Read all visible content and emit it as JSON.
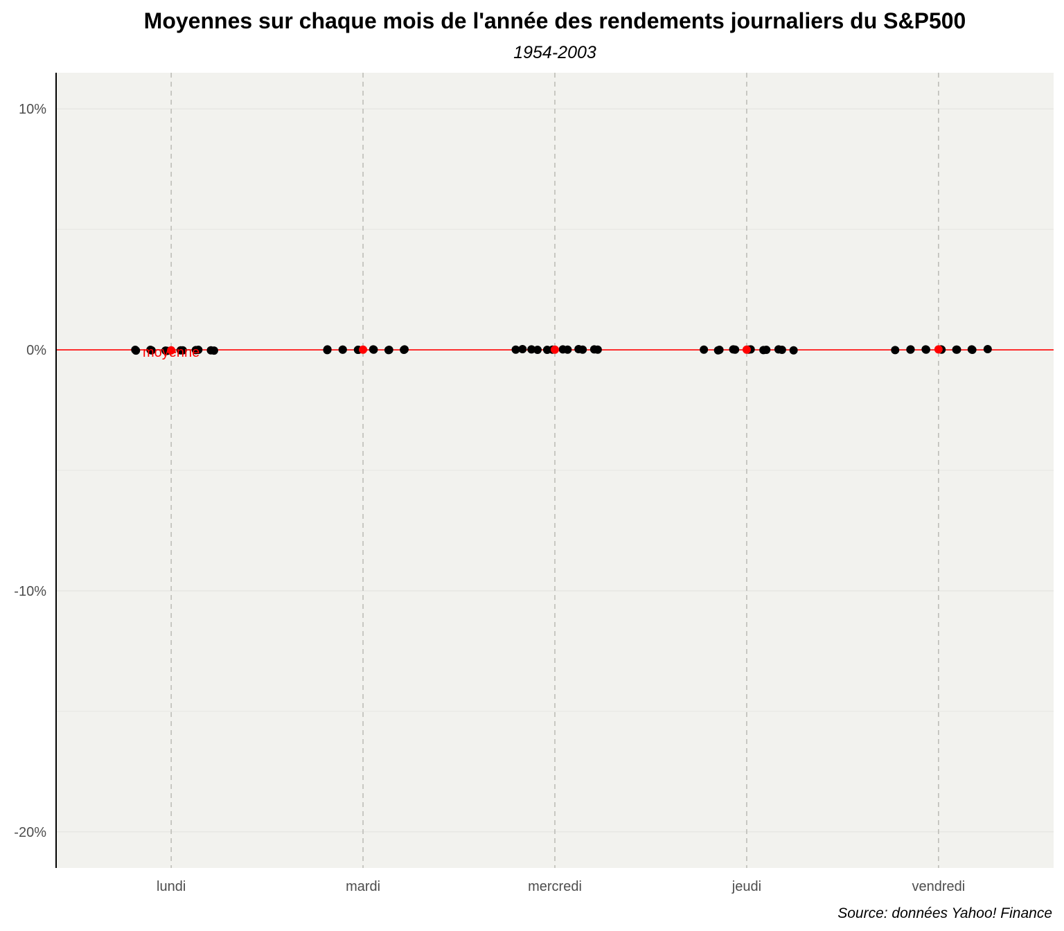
{
  "chart_data": {
    "type": "scatter",
    "title": "Moyennes sur chaque mois de l'année des rendements journaliers du S&P500",
    "subtitle": "1954-2003",
    "caption": "Source: données Yahoo! Finance",
    "xlabel": "",
    "ylabel": "",
    "categories": [
      "lundi",
      "mardi",
      "mercredi",
      "jeudi",
      "vendredi"
    ],
    "ylim": [
      -0.215,
      0.115
    ],
    "yticks": [
      {
        "value": 0.1,
        "label": "10%"
      },
      {
        "value": 0.0,
        "label": "0%"
      },
      {
        "value": -0.1,
        "label": "-10%"
      },
      {
        "value": -0.2,
        "label": "-20%"
      }
    ],
    "reference_line": {
      "value": 0.0,
      "color": "#ff0000"
    },
    "annotation": {
      "category": "lundi",
      "text": "moyenne",
      "color": "#ff0000"
    },
    "series": [
      {
        "color": "#000000",
        "points": [
          {
            "category": "lundi",
            "values": [
              0.0,
              -0.0003,
              0.0,
              -0.0002,
              -0.0003,
              -0.0004,
              -0.0002,
              -0.0002,
              -0.0001,
              0.0,
              -0.0002,
              -0.0003
            ]
          },
          {
            "category": "mardi",
            "values": [
              -0.0001,
              0.0002,
              0.0001,
              0.0001,
              0.0,
              0.0,
              0.0001,
              0.0002,
              0.0,
              -0.0001,
              0.0002,
              0.0
            ]
          },
          {
            "category": "mercredi",
            "values": [
              0.0001,
              0.0003,
              0.0002,
              0.0,
              0.0,
              0.0001,
              0.0002,
              0.0001,
              0.0003,
              0.0001,
              0.0002,
              0.0001
            ]
          },
          {
            "category": "jeudi",
            "values": [
              0.0001,
              -0.0002,
              0.0,
              0.0002,
              0.0001,
              0.0001,
              0.0002,
              -0.0001,
              0.0,
              0.0002,
              0.0,
              -0.0002
            ]
          },
          {
            "category": "vendredi",
            "values": [
              -0.0001,
              0.0002,
              0.0001,
              0.0001,
              0.0002,
              0.0001,
              0.0002,
              0.0001,
              0.0001,
              0.0,
              0.0002,
              0.0003
            ]
          }
        ]
      },
      {
        "color": "#ff0000",
        "points": [
          {
            "category": "lundi",
            "values": [
              -0.0002
            ]
          },
          {
            "category": "mardi",
            "values": [
              0.0001
            ]
          },
          {
            "category": "mercredi",
            "values": [
              0.0001
            ]
          },
          {
            "category": "jeudi",
            "values": [
              0.0001
            ]
          },
          {
            "category": "vendredi",
            "values": [
              0.0002
            ]
          }
        ]
      }
    ]
  }
}
